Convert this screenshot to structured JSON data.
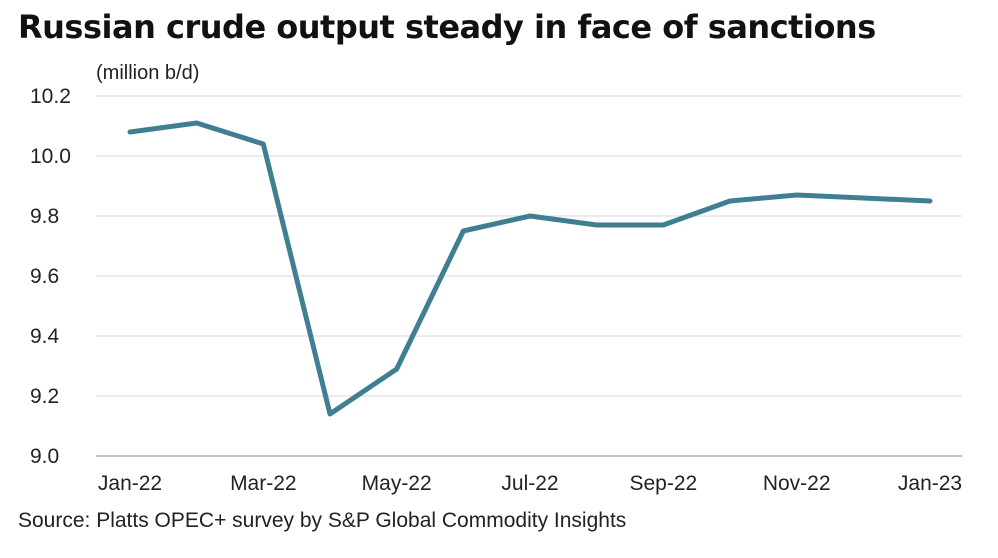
{
  "title": "Russian crude output steady in face of sanctions",
  "unit_label": "(million b/d)",
  "source": "Source: Platts OPEC+ survey by S&P Global Commodity Insights",
  "colors": {
    "series": "#3f7f91"
  },
  "chart_data": {
    "type": "line",
    "title": "Russian crude output steady in face of sanctions",
    "ylabel": "(million b/d)",
    "xlabel": "",
    "ylim": [
      9.0,
      10.2
    ],
    "yticks": [
      "9.0",
      "9.2",
      "9.4",
      "9.6",
      "9.8",
      "10.0",
      "10.2"
    ],
    "x": [
      "Jan-22",
      "Feb-22",
      "Mar-22",
      "Apr-22",
      "May-22",
      "Jun-22",
      "Jul-22",
      "Aug-22",
      "Sep-22",
      "Oct-22",
      "Nov-22",
      "Dec-22",
      "Jan-23"
    ],
    "xtick_labels": [
      "Jan-22",
      "Mar-22",
      "May-22",
      "Jul-22",
      "Sep-22",
      "Nov-22",
      "Jan-23"
    ],
    "series": [
      {
        "values": [
          10.08,
          10.11,
          10.04,
          9.14,
          9.29,
          9.75,
          9.8,
          9.77,
          9.77,
          9.85,
          9.87,
          9.86,
          9.85
        ]
      }
    ],
    "grid": true,
    "legend": "none"
  }
}
